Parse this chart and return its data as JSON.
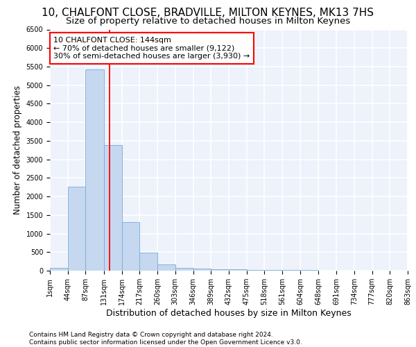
{
  "title": "10, CHALFONT CLOSE, BRADVILLE, MILTON KEYNES, MK13 7HS",
  "subtitle": "Size of property relative to detached houses in Milton Keynes",
  "xlabel": "Distribution of detached houses by size in Milton Keynes",
  "ylabel": "Number of detached properties",
  "footer_line1": "Contains HM Land Registry data © Crown copyright and database right 2024.",
  "footer_line2": "Contains public sector information licensed under the Open Government Licence v3.0.",
  "annotation_line1": "10 CHALFONT CLOSE: 144sqm",
  "annotation_line2": "← 70% of detached houses are smaller (9,122)",
  "annotation_line3": "30% of semi-detached houses are larger (3,930) →",
  "bar_edges": [
    1,
    44,
    87,
    131,
    174,
    217,
    260,
    303,
    346,
    389,
    432,
    475,
    518,
    561,
    604,
    648,
    691,
    734,
    777,
    820,
    863
  ],
  "bar_heights": [
    75,
    2270,
    5420,
    3390,
    1310,
    480,
    160,
    80,
    60,
    45,
    35,
    25,
    20,
    15,
    10,
    8,
    6,
    5,
    4,
    3
  ],
  "bar_color": "#c5d8f0",
  "bar_edge_color": "#7aaad4",
  "red_line_x": 144,
  "ylim": [
    0,
    6500
  ],
  "yticks": [
    0,
    500,
    1000,
    1500,
    2000,
    2500,
    3000,
    3500,
    4000,
    4500,
    5000,
    5500,
    6000,
    6500
  ],
  "bg_color": "#edf2fb",
  "grid_color": "#ffffff",
  "title_fontsize": 11,
  "subtitle_fontsize": 9.5,
  "ylabel_fontsize": 8.5,
  "xlabel_fontsize": 9,
  "tick_label_fontsize": 7,
  "footer_fontsize": 6.5,
  "annotation_fontsize": 8
}
